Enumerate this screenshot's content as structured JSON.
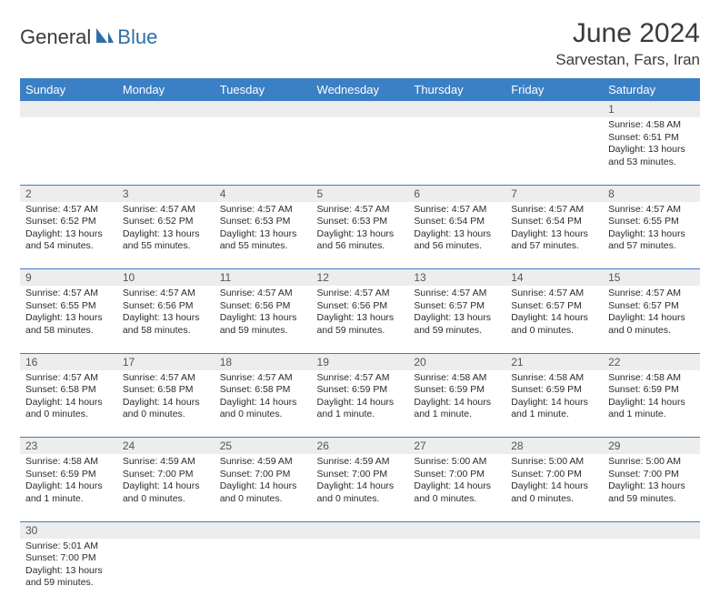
{
  "logo": {
    "general": "General",
    "blue": "Blue"
  },
  "header": {
    "month_title": "June 2024",
    "location": "Sarvestan, Fars, Iran"
  },
  "colors": {
    "header_bg": "#3b7fc4",
    "header_text": "#ffffff",
    "daynum_bg": "#ededed",
    "border": "#3b7fc4",
    "text": "#2b2b2b",
    "logo_blue": "#2f6fa8"
  },
  "weekdays": [
    "Sunday",
    "Monday",
    "Tuesday",
    "Wednesday",
    "Thursday",
    "Friday",
    "Saturday"
  ],
  "weeks": [
    {
      "nums": [
        "",
        "",
        "",
        "",
        "",
        "",
        "1"
      ],
      "cells": [
        "",
        "",
        "",
        "",
        "",
        "",
        "Sunrise: 4:58 AM\nSunset: 6:51 PM\nDaylight: 13 hours and 53 minutes."
      ]
    },
    {
      "nums": [
        "2",
        "3",
        "4",
        "5",
        "6",
        "7",
        "8"
      ],
      "cells": [
        "Sunrise: 4:57 AM\nSunset: 6:52 PM\nDaylight: 13 hours and 54 minutes.",
        "Sunrise: 4:57 AM\nSunset: 6:52 PM\nDaylight: 13 hours and 55 minutes.",
        "Sunrise: 4:57 AM\nSunset: 6:53 PM\nDaylight: 13 hours and 55 minutes.",
        "Sunrise: 4:57 AM\nSunset: 6:53 PM\nDaylight: 13 hours and 56 minutes.",
        "Sunrise: 4:57 AM\nSunset: 6:54 PM\nDaylight: 13 hours and 56 minutes.",
        "Sunrise: 4:57 AM\nSunset: 6:54 PM\nDaylight: 13 hours and 57 minutes.",
        "Sunrise: 4:57 AM\nSunset: 6:55 PM\nDaylight: 13 hours and 57 minutes."
      ]
    },
    {
      "nums": [
        "9",
        "10",
        "11",
        "12",
        "13",
        "14",
        "15"
      ],
      "cells": [
        "Sunrise: 4:57 AM\nSunset: 6:55 PM\nDaylight: 13 hours and 58 minutes.",
        "Sunrise: 4:57 AM\nSunset: 6:56 PM\nDaylight: 13 hours and 58 minutes.",
        "Sunrise: 4:57 AM\nSunset: 6:56 PM\nDaylight: 13 hours and 59 minutes.",
        "Sunrise: 4:57 AM\nSunset: 6:56 PM\nDaylight: 13 hours and 59 minutes.",
        "Sunrise: 4:57 AM\nSunset: 6:57 PM\nDaylight: 13 hours and 59 minutes.",
        "Sunrise: 4:57 AM\nSunset: 6:57 PM\nDaylight: 14 hours and 0 minutes.",
        "Sunrise: 4:57 AM\nSunset: 6:57 PM\nDaylight: 14 hours and 0 minutes."
      ]
    },
    {
      "nums": [
        "16",
        "17",
        "18",
        "19",
        "20",
        "21",
        "22"
      ],
      "cells": [
        "Sunrise: 4:57 AM\nSunset: 6:58 PM\nDaylight: 14 hours and 0 minutes.",
        "Sunrise: 4:57 AM\nSunset: 6:58 PM\nDaylight: 14 hours and 0 minutes.",
        "Sunrise: 4:57 AM\nSunset: 6:58 PM\nDaylight: 14 hours and 0 minutes.",
        "Sunrise: 4:57 AM\nSunset: 6:59 PM\nDaylight: 14 hours and 1 minute.",
        "Sunrise: 4:58 AM\nSunset: 6:59 PM\nDaylight: 14 hours and 1 minute.",
        "Sunrise: 4:58 AM\nSunset: 6:59 PM\nDaylight: 14 hours and 1 minute.",
        "Sunrise: 4:58 AM\nSunset: 6:59 PM\nDaylight: 14 hours and 1 minute."
      ]
    },
    {
      "nums": [
        "23",
        "24",
        "25",
        "26",
        "27",
        "28",
        "29"
      ],
      "cells": [
        "Sunrise: 4:58 AM\nSunset: 6:59 PM\nDaylight: 14 hours and 1 minute.",
        "Sunrise: 4:59 AM\nSunset: 7:00 PM\nDaylight: 14 hours and 0 minutes.",
        "Sunrise: 4:59 AM\nSunset: 7:00 PM\nDaylight: 14 hours and 0 minutes.",
        "Sunrise: 4:59 AM\nSunset: 7:00 PM\nDaylight: 14 hours and 0 minutes.",
        "Sunrise: 5:00 AM\nSunset: 7:00 PM\nDaylight: 14 hours and 0 minutes.",
        "Sunrise: 5:00 AM\nSunset: 7:00 PM\nDaylight: 14 hours and 0 minutes.",
        "Sunrise: 5:00 AM\nSunset: 7:00 PM\nDaylight: 13 hours and 59 minutes."
      ]
    },
    {
      "nums": [
        "30",
        "",
        "",
        "",
        "",
        "",
        ""
      ],
      "cells": [
        "Sunrise: 5:01 AM\nSunset: 7:00 PM\nDaylight: 13 hours and 59 minutes.",
        "",
        "",
        "",
        "",
        "",
        ""
      ]
    }
  ]
}
